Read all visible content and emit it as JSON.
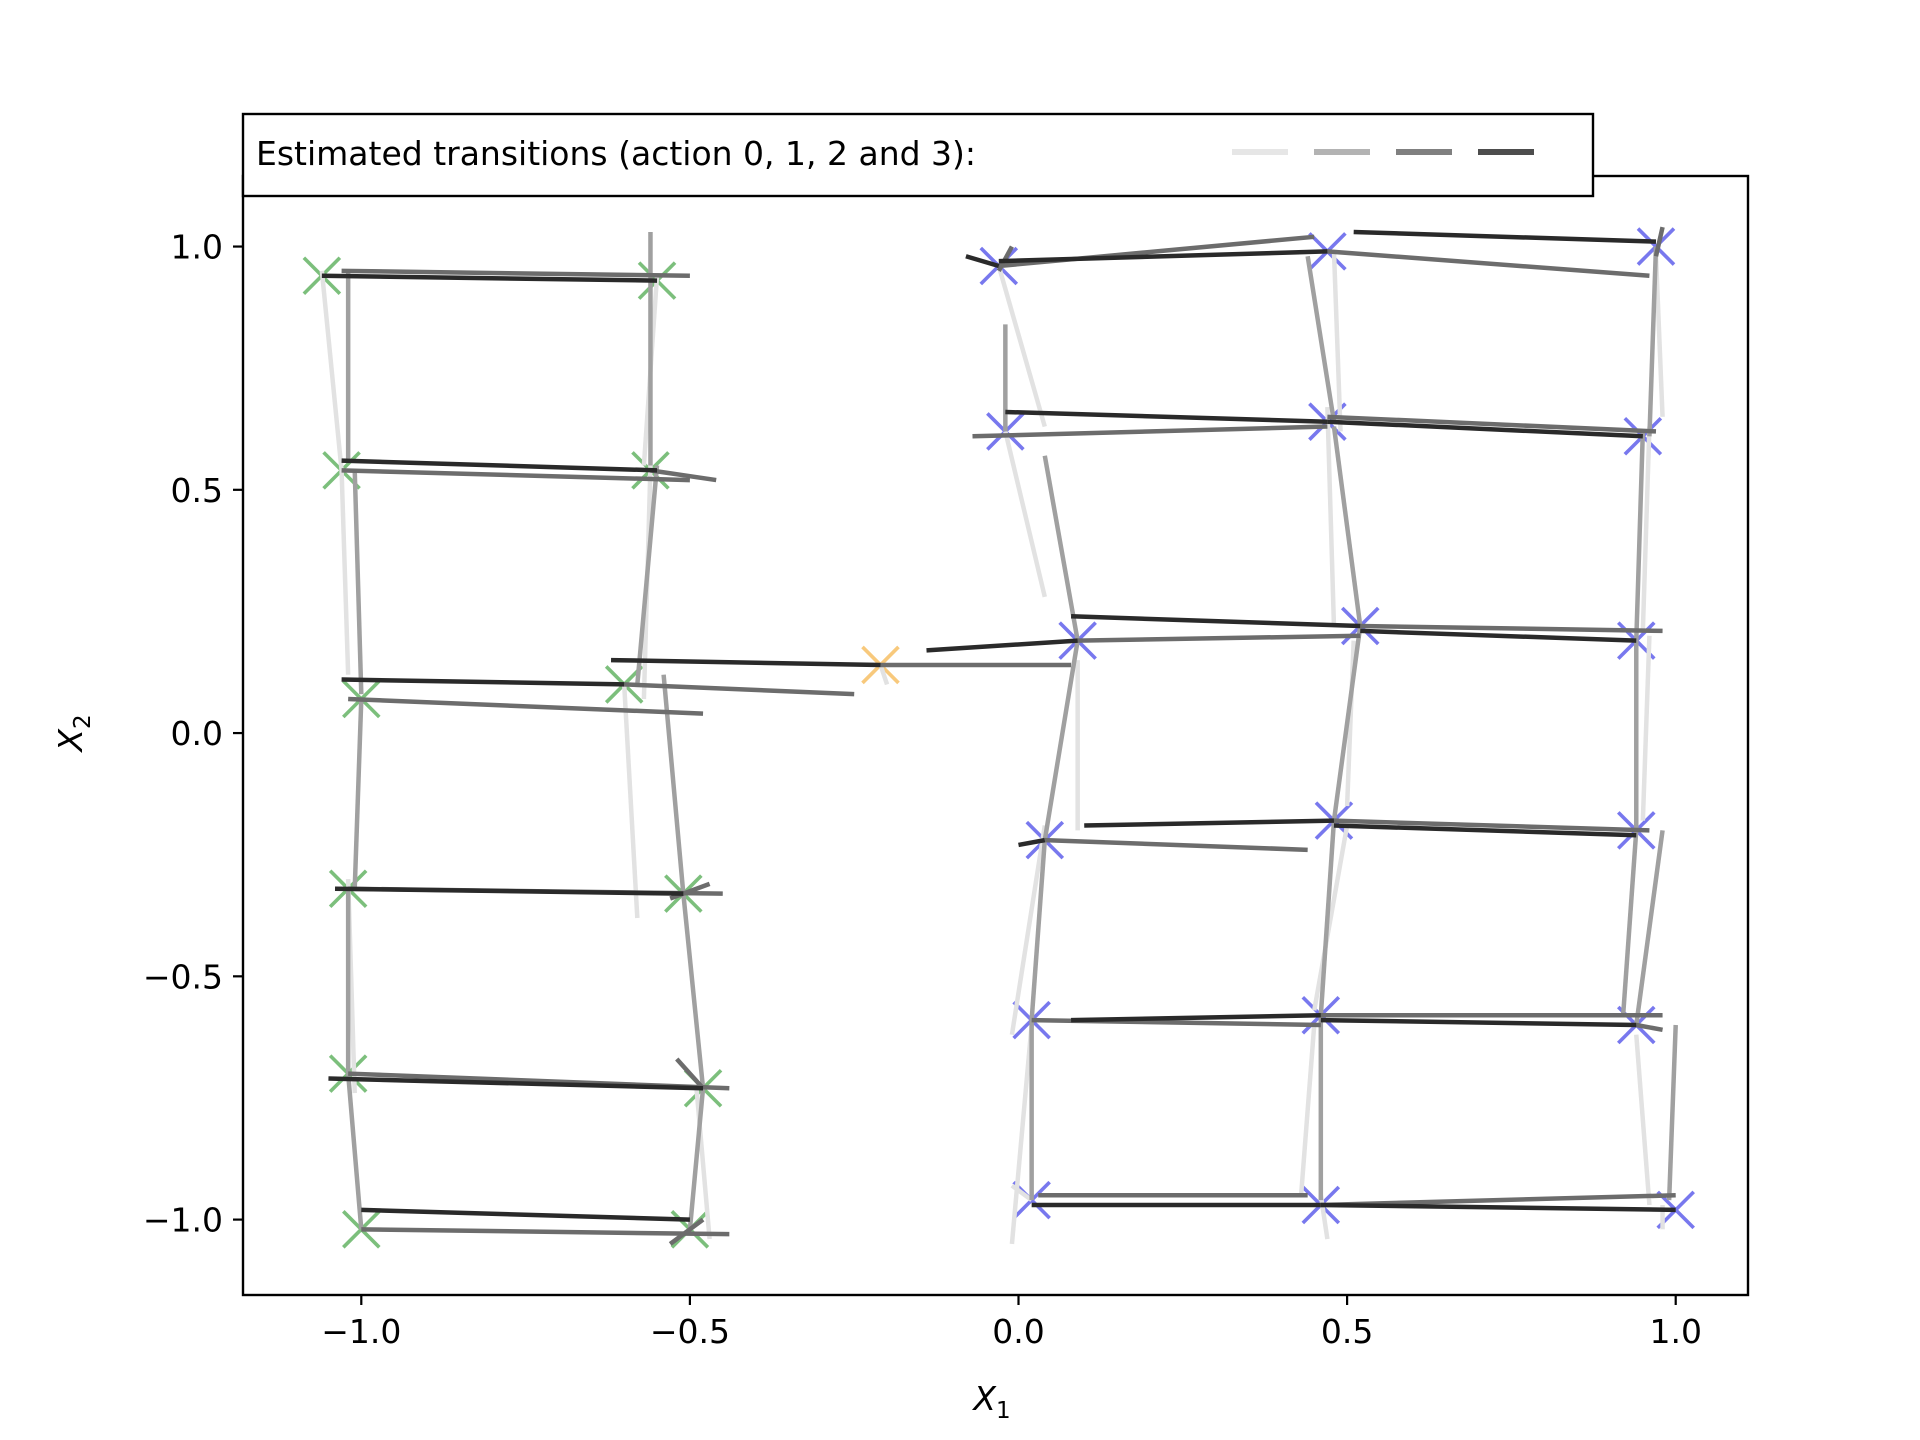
{
  "chart_data": {
    "type": "scatter",
    "xlabel": "X",
    "xlabel_sub": "1",
    "ylabel": "X",
    "ylabel_sub": "2",
    "xlim": [
      -1.18,
      1.11
    ],
    "ylim": [
      -1.155,
      1.145
    ],
    "xticks": [
      -1.0,
      -0.5,
      0.0,
      0.5,
      1.0
    ],
    "xtick_labels": [
      "−1.0",
      "−0.5",
      "0.0",
      "0.5",
      "1.0"
    ],
    "yticks": [
      1.0,
      0.5,
      0.0,
      -0.5,
      -1.0
    ],
    "ytick_labels": [
      "1.0",
      "0.5",
      "0.0",
      "−0.5",
      "−1.0"
    ],
    "grid": false,
    "legend": {
      "placement": "top-left, above plot",
      "text": "Estimated transitions (action 0, 1, 2 and 3):",
      "entries": [
        {
          "action": 0,
          "color": "#e6e6e6"
        },
        {
          "action": 1,
          "color": "#b3b3b3"
        },
        {
          "action": 2,
          "color": "#808080"
        },
        {
          "action": 3,
          "color": "#4d4d4d"
        }
      ]
    },
    "action_colors": [
      "#e2e2e2",
      "#a0a0a0",
      "#6c6c6c",
      "#2a2a2a"
    ],
    "marker_groups": [
      {
        "color": "#7cbf7c",
        "points": [
          [
            -1.06,
            0.94
          ],
          [
            -0.55,
            0.93
          ],
          [
            -1.03,
            0.54
          ],
          [
            -0.56,
            0.54
          ],
          [
            -1.0,
            0.07
          ],
          [
            -0.6,
            0.1
          ],
          [
            -1.02,
            -0.32
          ],
          [
            -0.51,
            -0.33
          ],
          [
            -1.02,
            -0.7
          ],
          [
            -0.48,
            -0.73
          ],
          [
            -1.0,
            -1.02
          ],
          [
            -0.5,
            -1.02
          ]
        ]
      },
      {
        "color": "#f8c97c",
        "points": [
          [
            -0.21,
            0.14
          ]
        ]
      },
      {
        "color": "#7878ee",
        "points": [
          [
            -0.03,
            0.96
          ],
          [
            0.47,
            0.99
          ],
          [
            0.97,
            1.0
          ],
          [
            -0.02,
            0.62
          ],
          [
            0.47,
            0.64
          ],
          [
            0.95,
            0.61
          ],
          [
            0.09,
            0.19
          ],
          [
            0.52,
            0.22
          ],
          [
            0.94,
            0.19
          ],
          [
            0.04,
            -0.22
          ],
          [
            0.48,
            -0.18
          ],
          [
            0.94,
            -0.2
          ],
          [
            0.02,
            -0.59
          ],
          [
            0.46,
            -0.58
          ],
          [
            0.94,
            -0.6
          ],
          [
            0.02,
            -0.96
          ],
          [
            0.46,
            -0.97
          ],
          [
            1.0,
            -0.98
          ]
        ]
      }
    ],
    "transitions": [
      {
        "action": 3,
        "from": [
          -1.06,
          0.94
        ],
        "to": [
          -0.55,
          0.93
        ]
      },
      {
        "action": 2,
        "from": [
          -1.03,
          0.95
        ],
        "to": [
          -0.5,
          0.94
        ]
      },
      {
        "action": 0,
        "from": [
          -1.06,
          0.95
        ],
        "to": [
          -1.03,
          0.54
        ]
      },
      {
        "action": 1,
        "from": [
          -1.02,
          0.95
        ],
        "to": [
          -1.02,
          0.56
        ]
      },
      {
        "action": 1,
        "from": [
          -0.56,
          1.03
        ],
        "to": [
          -0.56,
          0.55
        ]
      },
      {
        "action": 0,
        "from": [
          -0.55,
          0.94
        ],
        "to": [
          -0.57,
          0.55
        ]
      },
      {
        "action": 3,
        "from": [
          -1.03,
          0.56
        ],
        "to": [
          -0.55,
          0.54
        ]
      },
      {
        "action": 2,
        "from": [
          -1.03,
          0.54
        ],
        "to": [
          -0.5,
          0.52
        ]
      },
      {
        "action": 2,
        "from": [
          -0.56,
          0.54
        ],
        "to": [
          -0.46,
          0.52
        ]
      },
      {
        "action": 0,
        "from": [
          -1.03,
          0.54
        ],
        "to": [
          -1.02,
          0.12
        ]
      },
      {
        "action": 1,
        "from": [
          -1.01,
          0.54
        ],
        "to": [
          -1.0,
          0.08
        ]
      },
      {
        "action": 0,
        "from": [
          -0.56,
          0.55
        ],
        "to": [
          -0.57,
          0.07
        ]
      },
      {
        "action": 1,
        "from": [
          -0.55,
          0.55
        ],
        "to": [
          -0.58,
          0.1
        ]
      },
      {
        "action": 3,
        "from": [
          -1.03,
          0.11
        ],
        "to": [
          -0.6,
          0.1
        ]
      },
      {
        "action": 2,
        "from": [
          -1.02,
          0.07
        ],
        "to": [
          -0.48,
          0.04
        ]
      },
      {
        "action": 2,
        "from": [
          -0.6,
          0.1
        ],
        "to": [
          -0.25,
          0.08
        ]
      },
      {
        "action": 3,
        "from": [
          -0.62,
          0.15
        ],
        "to": [
          -0.21,
          0.14
        ]
      },
      {
        "action": 2,
        "from": [
          -0.21,
          0.14
        ],
        "to": [
          0.08,
          0.14
        ]
      },
      {
        "action": 3,
        "from": [
          -0.14,
          0.17
        ],
        "to": [
          0.09,
          0.19
        ]
      },
      {
        "action": 0,
        "from": [
          -0.2,
          0.1
        ],
        "to": [
          -0.21,
          0.14
        ]
      },
      {
        "action": 0,
        "from": [
          -0.6,
          0.1
        ],
        "to": [
          -0.58,
          -0.38
        ]
      },
      {
        "action": 1,
        "from": [
          -0.54,
          0.12
        ],
        "to": [
          -0.51,
          -0.33
        ]
      },
      {
        "action": 1,
        "from": [
          -1.0,
          0.07
        ],
        "to": [
          -1.01,
          -0.32
        ]
      },
      {
        "action": 3,
        "from": [
          -1.04,
          -0.32
        ],
        "to": [
          -0.51,
          -0.33
        ]
      },
      {
        "action": 2,
        "from": [
          -1.02,
          -0.32
        ],
        "to": [
          -0.45,
          -0.33
        ]
      },
      {
        "action": 2,
        "from": [
          -0.53,
          -0.34
        ],
        "to": [
          -0.47,
          -0.31
        ]
      },
      {
        "action": 1,
        "from": [
          -1.02,
          -0.32
        ],
        "to": [
          -1.02,
          -0.7
        ]
      },
      {
        "action": 0,
        "from": [
          -1.02,
          -0.3
        ],
        "to": [
          -1.01,
          -0.74
        ]
      },
      {
        "action": 1,
        "from": [
          -0.51,
          -0.33
        ],
        "to": [
          -0.48,
          -0.73
        ]
      },
      {
        "action": 3,
        "from": [
          -1.05,
          -0.71
        ],
        "to": [
          -0.48,
          -0.73
        ]
      },
      {
        "action": 2,
        "from": [
          -1.02,
          -0.7
        ],
        "to": [
          -0.44,
          -0.73
        ]
      },
      {
        "action": 2,
        "from": [
          -0.52,
          -0.67
        ],
        "to": [
          -0.48,
          -0.73
        ]
      },
      {
        "action": 1,
        "from": [
          -1.02,
          -0.7
        ],
        "to": [
          -1.0,
          -1.02
        ]
      },
      {
        "action": 1,
        "from": [
          -0.48,
          -0.73
        ],
        "to": [
          -0.5,
          -1.02
        ]
      },
      {
        "action": 0,
        "from": [
          -0.49,
          -0.73
        ],
        "to": [
          -0.47,
          -1.04
        ]
      },
      {
        "action": 3,
        "from": [
          -1.0,
          -0.98
        ],
        "to": [
          -0.5,
          -1.0
        ]
      },
      {
        "action": 2,
        "from": [
          -1.0,
          -1.02
        ],
        "to": [
          -0.44,
          -1.03
        ]
      },
      {
        "action": 2,
        "from": [
          -0.53,
          -1.05
        ],
        "to": [
          -0.48,
          -1.0
        ]
      },
      {
        "action": 3,
        "from": [
          -0.08,
          0.98
        ],
        "to": [
          -0.03,
          0.96
        ]
      },
      {
        "action": 3,
        "from": [
          -0.03,
          0.97
        ],
        "to": [
          0.47,
          0.99
        ]
      },
      {
        "action": 2,
        "from": [
          -0.03,
          0.96
        ],
        "to": [
          0.45,
          1.02
        ]
      },
      {
        "action": 2,
        "from": [
          -0.03,
          0.95
        ],
        "to": [
          -0.01,
          1.0
        ]
      },
      {
        "action": 1,
        "from": [
          -0.02,
          0.84
        ],
        "to": [
          -0.02,
          0.62
        ]
      },
      {
        "action": 0,
        "from": [
          -0.03,
          0.96
        ],
        "to": [
          0.04,
          0.63
        ]
      },
      {
        "action": 3,
        "from": [
          0.51,
          1.03
        ],
        "to": [
          0.97,
          1.01
        ]
      },
      {
        "action": 2,
        "from": [
          0.47,
          0.99
        ],
        "to": [
          0.96,
          0.94
        ]
      },
      {
        "action": 1,
        "from": [
          0.44,
          0.98
        ],
        "to": [
          0.48,
          0.64
        ]
      },
      {
        "action": 0,
        "from": [
          0.48,
          0.99
        ],
        "to": [
          0.49,
          0.62
        ]
      },
      {
        "action": 1,
        "from": [
          0.97,
          1.0
        ],
        "to": [
          0.96,
          0.61
        ]
      },
      {
        "action": 0,
        "from": [
          0.97,
          0.98
        ],
        "to": [
          0.98,
          0.65
        ]
      },
      {
        "action": 2,
        "from": [
          0.97,
          0.98
        ],
        "to": [
          0.98,
          1.04
        ]
      },
      {
        "action": 3,
        "from": [
          -0.02,
          0.66
        ],
        "to": [
          0.47,
          0.64
        ]
      },
      {
        "action": 2,
        "from": [
          -0.07,
          0.61
        ],
        "to": [
          0.47,
          0.63
        ]
      },
      {
        "action": 0,
        "from": [
          -0.02,
          0.62
        ],
        "to": [
          0.04,
          0.28
        ]
      },
      {
        "action": 1,
        "from": [
          0.04,
          0.57
        ],
        "to": [
          0.09,
          0.19
        ]
      },
      {
        "action": 3,
        "from": [
          0.47,
          0.64
        ],
        "to": [
          0.95,
          0.61
        ]
      },
      {
        "action": 2,
        "from": [
          0.47,
          0.65
        ],
        "to": [
          0.97,
          0.62
        ]
      },
      {
        "action": 1,
        "from": [
          0.48,
          0.63
        ],
        "to": [
          0.52,
          0.22
        ]
      },
      {
        "action": 0,
        "from": [
          0.47,
          0.67
        ],
        "to": [
          0.48,
          0.22
        ]
      },
      {
        "action": 1,
        "from": [
          0.95,
          0.62
        ],
        "to": [
          0.94,
          0.19
        ]
      },
      {
        "action": 0,
        "from": [
          0.96,
          0.63
        ],
        "to": [
          0.95,
          0.21
        ]
      },
      {
        "action": 3,
        "from": [
          0.08,
          0.24
        ],
        "to": [
          0.52,
          0.22
        ]
      },
      {
        "action": 2,
        "from": [
          0.09,
          0.19
        ],
        "to": [
          0.52,
          0.2
        ]
      },
      {
        "action": 3,
        "from": [
          0.52,
          0.21
        ],
        "to": [
          0.94,
          0.19
        ]
      },
      {
        "action": 2,
        "from": [
          0.52,
          0.22
        ],
        "to": [
          0.98,
          0.21
        ]
      },
      {
        "action": 1,
        "from": [
          0.09,
          0.19
        ],
        "to": [
          0.04,
          -0.22
        ]
      },
      {
        "action": 0,
        "from": [
          0.09,
          0.15
        ],
        "to": [
          0.09,
          -0.2
        ]
      },
      {
        "action": 1,
        "from": [
          0.52,
          0.22
        ],
        "to": [
          0.48,
          -0.18
        ]
      },
      {
        "action": 0,
        "from": [
          0.51,
          0.19
        ],
        "to": [
          0.5,
          -0.15
        ]
      },
      {
        "action": 1,
        "from": [
          0.94,
          0.19
        ],
        "to": [
          0.94,
          -0.2
        ]
      },
      {
        "action": 0,
        "from": [
          0.96,
          0.2
        ],
        "to": [
          0.95,
          -0.18
        ]
      },
      {
        "action": 3,
        "from": [
          0.1,
          -0.19
        ],
        "to": [
          0.48,
          -0.18
        ]
      },
      {
        "action": 2,
        "from": [
          0.04,
          -0.22
        ],
        "to": [
          0.44,
          -0.24
        ]
      },
      {
        "action": 3,
        "from": [
          0.0,
          -0.23
        ],
        "to": [
          0.04,
          -0.22
        ]
      },
      {
        "action": 3,
        "from": [
          0.48,
          -0.19
        ],
        "to": [
          0.94,
          -0.21
        ]
      },
      {
        "action": 2,
        "from": [
          0.48,
          -0.18
        ],
        "to": [
          0.96,
          -0.2
        ]
      },
      {
        "action": 1,
        "from": [
          0.04,
          -0.22
        ],
        "to": [
          0.02,
          -0.59
        ]
      },
      {
        "action": 0,
        "from": [
          0.04,
          -0.19
        ],
        "to": [
          -0.01,
          -0.62
        ]
      },
      {
        "action": 1,
        "from": [
          0.48,
          -0.18
        ],
        "to": [
          0.46,
          -0.58
        ]
      },
      {
        "action": 0,
        "from": [
          0.5,
          -0.19
        ],
        "to": [
          0.45,
          -0.57
        ]
      },
      {
        "action": 1,
        "from": [
          0.94,
          -0.2
        ],
        "to": [
          0.92,
          -0.58
        ]
      },
      {
        "action": 1,
        "from": [
          0.98,
          -0.2
        ],
        "to": [
          0.94,
          -0.6
        ]
      },
      {
        "action": 3,
        "from": [
          0.08,
          -0.59
        ],
        "to": [
          0.46,
          -0.58
        ]
      },
      {
        "action": 2,
        "from": [
          0.02,
          -0.59
        ],
        "to": [
          0.46,
          -0.6
        ]
      },
      {
        "action": 3,
        "from": [
          0.46,
          -0.59
        ],
        "to": [
          0.94,
          -0.6
        ]
      },
      {
        "action": 2,
        "from": [
          0.46,
          -0.58
        ],
        "to": [
          0.98,
          -0.58
        ]
      },
      {
        "action": 2,
        "from": [
          0.94,
          -0.6
        ],
        "to": [
          0.98,
          -0.61
        ]
      },
      {
        "action": 1,
        "from": [
          0.02,
          -0.59
        ],
        "to": [
          0.02,
          -0.96
        ]
      },
      {
        "action": 1,
        "from": [
          0.46,
          -0.58
        ],
        "to": [
          0.46,
          -0.96
        ]
      },
      {
        "action": 0,
        "from": [
          0.45,
          -0.6
        ],
        "to": [
          0.43,
          -0.95
        ]
      },
      {
        "action": 1,
        "from": [
          1.0,
          -0.6
        ],
        "to": [
          0.99,
          -0.96
        ]
      },
      {
        "action": 0,
        "from": [
          0.94,
          -0.62
        ],
        "to": [
          0.96,
          -0.97
        ]
      },
      {
        "action": 0,
        "from": [
          0.02,
          -0.6
        ],
        "to": [
          -0.01,
          -1.05
        ]
      },
      {
        "action": 3,
        "from": [
          0.02,
          -0.97
        ],
        "to": [
          0.46,
          -0.97
        ]
      },
      {
        "action": 2,
        "from": [
          0.03,
          -0.95
        ],
        "to": [
          0.44,
          -0.95
        ]
      },
      {
        "action": 3,
        "from": [
          0.46,
          -0.97
        ],
        "to": [
          1.0,
          -0.98
        ]
      },
      {
        "action": 2,
        "from": [
          0.46,
          -0.97
        ],
        "to": [
          1.0,
          -0.95
        ]
      },
      {
        "action": 0,
        "from": [
          0.46,
          -0.95
        ],
        "to": [
          0.47,
          -1.04
        ]
      },
      {
        "action": 0,
        "from": [
          0.98,
          -0.97
        ],
        "to": [
          0.98,
          -1.02
        ]
      },
      {
        "action": 0,
        "from": [
          -0.01,
          -0.93
        ],
        "to": [
          0.02,
          -0.96
        ]
      }
    ]
  }
}
